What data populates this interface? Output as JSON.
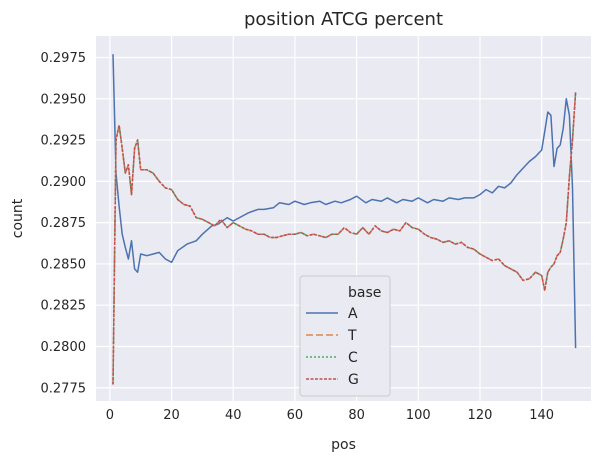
{
  "chart_data": {
    "type": "line",
    "title": "position ATCG percent",
    "xlabel": "pos",
    "ylabel": "count",
    "xlim": [
      -4.5,
      156
    ],
    "ylim": [
      0.2767,
      0.2988
    ],
    "xticks": [
      0,
      20,
      40,
      60,
      80,
      100,
      120,
      140
    ],
    "yticks": [
      0.2775,
      0.28,
      0.2825,
      0.285,
      0.2875,
      0.29,
      0.2925,
      0.295,
      0.2975
    ],
    "ytick_labels": [
      "0.2775",
      "0.2800",
      "0.2825",
      "0.2850",
      "0.2875",
      "0.2900",
      "0.2925",
      "0.2950",
      "0.2975"
    ],
    "grid": true,
    "legend": {
      "title": "base",
      "placement": "lower center"
    },
    "series": [
      {
        "name": "A",
        "color": "#4c72b0",
        "dash": "solid",
        "x": [
          1,
          2,
          3,
          4,
          5,
          6,
          7,
          8,
          9,
          10,
          12,
          14,
          16,
          18,
          20,
          22,
          25,
          28,
          30,
          33,
          35,
          38,
          40,
          43,
          45,
          48,
          50,
          53,
          55,
          58,
          60,
          63,
          65,
          68,
          70,
          73,
          75,
          78,
          80,
          83,
          85,
          88,
          90,
          93,
          95,
          98,
          100,
          103,
          105,
          108,
          110,
          113,
          115,
          118,
          120,
          122,
          124,
          126,
          128,
          130,
          132,
          134,
          136,
          138,
          140,
          141,
          142,
          143,
          144,
          145,
          146,
          147,
          148,
          149,
          150,
          151
        ],
        "values": [
          0.2977,
          0.2905,
          0.2885,
          0.2868,
          0.286,
          0.2853,
          0.2864,
          0.2847,
          0.2845,
          0.2856,
          0.2855,
          0.2856,
          0.2857,
          0.2853,
          0.2851,
          0.2858,
          0.2862,
          0.2864,
          0.2868,
          0.2873,
          0.2874,
          0.2878,
          0.2876,
          0.2879,
          0.2881,
          0.2883,
          0.2883,
          0.2884,
          0.2887,
          0.2886,
          0.2888,
          0.2886,
          0.2887,
          0.2888,
          0.2886,
          0.2888,
          0.2887,
          0.2889,
          0.2891,
          0.2887,
          0.2889,
          0.2888,
          0.289,
          0.2887,
          0.2889,
          0.2888,
          0.289,
          0.2887,
          0.2889,
          0.2888,
          0.289,
          0.2889,
          0.289,
          0.289,
          0.2892,
          0.2895,
          0.2893,
          0.2897,
          0.2896,
          0.2899,
          0.2904,
          0.2908,
          0.2912,
          0.2915,
          0.2919,
          0.293,
          0.2942,
          0.294,
          0.2909,
          0.292,
          0.2922,
          0.2932,
          0.295,
          0.294,
          0.2896,
          0.2799
        ]
      },
      {
        "name": "T",
        "color": "#dd8452",
        "dash": "7,3",
        "x": [
          1,
          2,
          3,
          4,
          5,
          6,
          7,
          8,
          9,
          10,
          12,
          14,
          16,
          18,
          20,
          22,
          24,
          26,
          28,
          30,
          32,
          34,
          36,
          38,
          40,
          42,
          44,
          46,
          48,
          50,
          52,
          54,
          56,
          58,
          60,
          62,
          64,
          66,
          68,
          70,
          72,
          74,
          76,
          78,
          80,
          82,
          84,
          86,
          88,
          90,
          92,
          94,
          96,
          98,
          100,
          102,
          104,
          106,
          108,
          110,
          112,
          114,
          116,
          118,
          120,
          122,
          124,
          126,
          128,
          130,
          132,
          134,
          136,
          138,
          140,
          141,
          142,
          143,
          144,
          145,
          146,
          147,
          148,
          149,
          150,
          151
        ],
        "values": [
          0.2777,
          0.2925,
          0.2934,
          0.292,
          0.2905,
          0.291,
          0.2892,
          0.292,
          0.2925,
          0.2907,
          0.2907,
          0.2905,
          0.29,
          0.2896,
          0.2895,
          0.2889,
          0.2886,
          0.2885,
          0.2878,
          0.2877,
          0.2875,
          0.2873,
          0.2877,
          0.2872,
          0.2875,
          0.2873,
          0.2871,
          0.287,
          0.2868,
          0.2868,
          0.2866,
          0.2866,
          0.2867,
          0.2868,
          0.2868,
          0.2869,
          0.2867,
          0.2868,
          0.2867,
          0.2866,
          0.2868,
          0.2868,
          0.2872,
          0.2869,
          0.2868,
          0.2872,
          0.2868,
          0.2873,
          0.287,
          0.2869,
          0.2871,
          0.287,
          0.2875,
          0.2872,
          0.2871,
          0.2868,
          0.2866,
          0.2865,
          0.2863,
          0.2864,
          0.2862,
          0.2863,
          0.286,
          0.2859,
          0.2856,
          0.2854,
          0.2852,
          0.2853,
          0.2849,
          0.2847,
          0.2845,
          0.284,
          0.2841,
          0.2845,
          0.2843,
          0.2834,
          0.2845,
          0.2848,
          0.285,
          0.2855,
          0.2857,
          0.2865,
          0.2875,
          0.2903,
          0.2925,
          0.2954
        ]
      },
      {
        "name": "C",
        "color": "#55a868",
        "dash": "2,2",
        "x": [
          1,
          2,
          3,
          4,
          5,
          6,
          7,
          8,
          9,
          10,
          12,
          14,
          16,
          18,
          20,
          22,
          24,
          26,
          28,
          30,
          32,
          34,
          36,
          38,
          40,
          42,
          44,
          46,
          48,
          50,
          52,
          54,
          56,
          58,
          60,
          62,
          64,
          66,
          68,
          70,
          72,
          74,
          76,
          78,
          80,
          82,
          84,
          86,
          88,
          90,
          92,
          94,
          96,
          98,
          100,
          102,
          104,
          106,
          108,
          110,
          112,
          114,
          116,
          118,
          120,
          122,
          124,
          126,
          128,
          130,
          132,
          134,
          136,
          138,
          140,
          141,
          142,
          143,
          144,
          145,
          146,
          147,
          148,
          149,
          150,
          151
        ],
        "values": [
          0.2777,
          0.2925,
          0.2934,
          0.292,
          0.2905,
          0.291,
          0.2892,
          0.292,
          0.2925,
          0.2907,
          0.2907,
          0.2905,
          0.29,
          0.2896,
          0.2895,
          0.2889,
          0.2886,
          0.2885,
          0.2878,
          0.2877,
          0.2875,
          0.2873,
          0.2877,
          0.2872,
          0.2875,
          0.2873,
          0.2871,
          0.287,
          0.2868,
          0.2868,
          0.2866,
          0.2866,
          0.2867,
          0.2868,
          0.2868,
          0.2869,
          0.2867,
          0.2868,
          0.2867,
          0.2866,
          0.2868,
          0.2868,
          0.2872,
          0.2869,
          0.2868,
          0.2872,
          0.2868,
          0.2873,
          0.287,
          0.2869,
          0.2871,
          0.287,
          0.2875,
          0.2872,
          0.2871,
          0.2868,
          0.2866,
          0.2865,
          0.2863,
          0.2864,
          0.2862,
          0.2863,
          0.286,
          0.2859,
          0.2856,
          0.2854,
          0.2852,
          0.2853,
          0.2849,
          0.2847,
          0.2845,
          0.284,
          0.2841,
          0.2845,
          0.2843,
          0.2834,
          0.2845,
          0.2848,
          0.285,
          0.2855,
          0.2857,
          0.2865,
          0.2875,
          0.2903,
          0.2925,
          0.2954
        ]
      },
      {
        "name": "G",
        "color": "#c44e52",
        "dash": "3,1.5",
        "x": [
          1,
          2,
          3,
          4,
          5,
          6,
          7,
          8,
          9,
          10,
          12,
          14,
          16,
          18,
          20,
          22,
          24,
          26,
          28,
          30,
          32,
          34,
          36,
          38,
          40,
          42,
          44,
          46,
          48,
          50,
          52,
          54,
          56,
          58,
          60,
          62,
          64,
          66,
          68,
          70,
          72,
          74,
          76,
          78,
          80,
          82,
          84,
          86,
          88,
          90,
          92,
          94,
          96,
          98,
          100,
          102,
          104,
          106,
          108,
          110,
          112,
          114,
          116,
          118,
          120,
          122,
          124,
          126,
          128,
          130,
          132,
          134,
          136,
          138,
          140,
          141,
          142,
          143,
          144,
          145,
          146,
          147,
          148,
          149,
          150,
          151
        ],
        "values": [
          0.2777,
          0.2925,
          0.2934,
          0.292,
          0.2905,
          0.291,
          0.2892,
          0.292,
          0.2925,
          0.2907,
          0.2907,
          0.2905,
          0.29,
          0.2896,
          0.2895,
          0.2889,
          0.2886,
          0.2885,
          0.2878,
          0.2877,
          0.2875,
          0.2873,
          0.2877,
          0.2872,
          0.2875,
          0.2873,
          0.2871,
          0.287,
          0.2868,
          0.2868,
          0.2866,
          0.2866,
          0.2867,
          0.2868,
          0.2868,
          0.2869,
          0.2867,
          0.2868,
          0.2867,
          0.2866,
          0.2868,
          0.2868,
          0.2872,
          0.2869,
          0.2868,
          0.2872,
          0.2868,
          0.2873,
          0.287,
          0.2869,
          0.2871,
          0.287,
          0.2875,
          0.2872,
          0.2871,
          0.2868,
          0.2866,
          0.2865,
          0.2863,
          0.2864,
          0.2862,
          0.2863,
          0.286,
          0.2859,
          0.2856,
          0.2854,
          0.2852,
          0.2853,
          0.2849,
          0.2847,
          0.2845,
          0.284,
          0.2841,
          0.2845,
          0.2843,
          0.2834,
          0.2845,
          0.2848,
          0.285,
          0.2855,
          0.2857,
          0.2865,
          0.2875,
          0.2903,
          0.2925,
          0.2954
        ]
      }
    ]
  }
}
